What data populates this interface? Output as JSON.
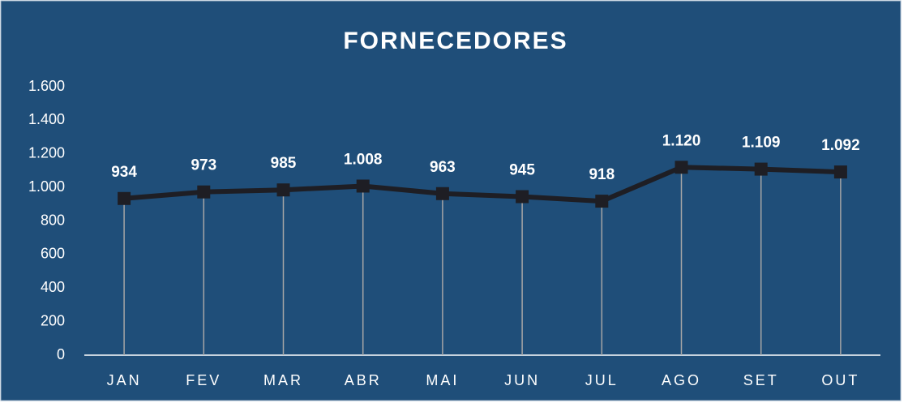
{
  "chart_data": {
    "type": "line",
    "title": "FORNECEDORES",
    "categories": [
      "JAN",
      "FEV",
      "MAR",
      "ABR",
      "MAI",
      "JUN",
      "JUL",
      "AGO",
      "SET",
      "OUT"
    ],
    "series": [
      {
        "name": "FORNECEDORES",
        "color": "#1e1e24",
        "values": [
          934,
          973,
          985,
          1008,
          963,
          945,
          918,
          1120,
          1109,
          1092
        ],
        "value_labels": [
          "934",
          "973",
          "985",
          "1.008",
          "963",
          "945",
          "918",
          "1.120",
          "1.109",
          "1.092"
        ]
      }
    ],
    "ylim": [
      0,
      1600
    ],
    "yticks": [
      0,
      200,
      400,
      600,
      800,
      {
        "value": 1000,
        "label": "1.000"
      },
      {
        "value": 1200,
        "label": "1.200"
      },
      {
        "value": 1400,
        "label": "1.400"
      },
      {
        "value": 1600,
        "label": "1.600"
      }
    ],
    "drop_lines": true,
    "grid": false
  }
}
